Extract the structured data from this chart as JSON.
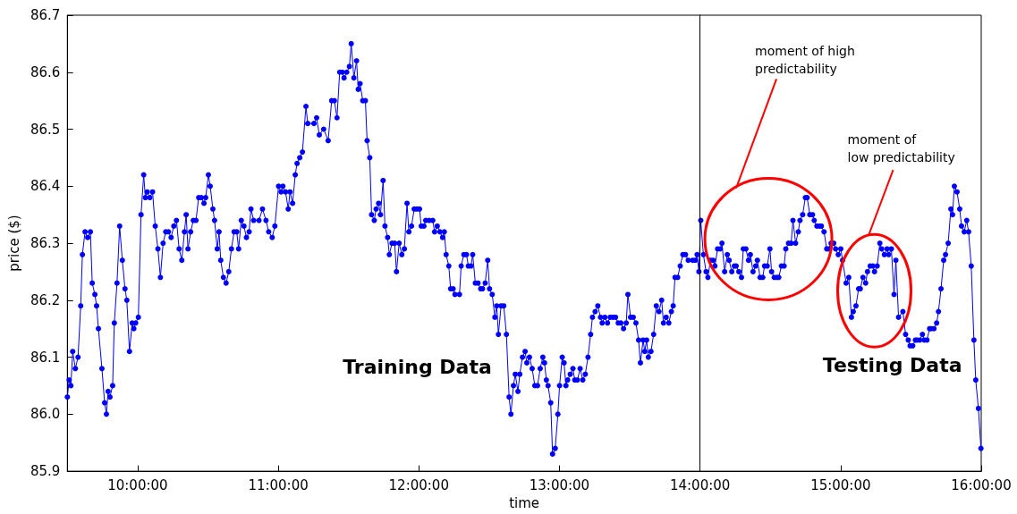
{
  "chart_data": {
    "type": "line",
    "xlabel": "time",
    "ylabel": "price ($)",
    "xlim": [
      9.5,
      16
    ],
    "xticks": [
      {
        "value": 10,
        "label": "10:00:00"
      },
      {
        "value": 11,
        "label": "11:00:00"
      },
      {
        "value": 12,
        "label": "12:00:00"
      },
      {
        "value": 13,
        "label": "13:00:00"
      },
      {
        "value": 14,
        "label": "14:00:00"
      },
      {
        "value": 15,
        "label": "15:00:00"
      },
      {
        "value": 16,
        "label": "16:00:00"
      }
    ],
    "ylim": [
      85.9,
      86.7
    ],
    "yticks": [
      85.9,
      {
        "value": 86,
        "label": "86.0"
      },
      86.1,
      86.2,
      86.3,
      86.4,
      86.5,
      86.6,
      86.7
    ],
    "grid": false,
    "marker": "circle",
    "line_style": "solid",
    "ref_lines": [
      {
        "axis": "x",
        "value": 14,
        "color": "#000000"
      }
    ],
    "annotations": [
      "Training Data",
      "Testing Data",
      "moment of high\npredictability",
      "moment of\nlow predictability"
    ],
    "series": [
      {
        "color": "#0000ff",
        "x": [
          9.5,
          9.513,
          9.525,
          9.538,
          9.557,
          9.576,
          9.595,
          9.607,
          9.626,
          9.645,
          9.664,
          9.677,
          9.696,
          9.708,
          9.721,
          9.746,
          9.765,
          9.778,
          9.79,
          9.803,
          9.822,
          9.834,
          9.853,
          9.872,
          9.891,
          9.91,
          9.923,
          9.942,
          9.961,
          9.973,
          9.986,
          10.005,
          10.024,
          10.043,
          10.055,
          10.068,
          10.087,
          10.106,
          10.125,
          10.144,
          10.162,
          10.181,
          10.2,
          10.219,
          10.238,
          10.257,
          10.276,
          10.295,
          10.314,
          10.333,
          10.345,
          10.358,
          10.377,
          10.396,
          10.415,
          10.434,
          10.453,
          10.472,
          10.484,
          10.503,
          10.516,
          10.535,
          10.547,
          10.566,
          10.579,
          10.591,
          10.61,
          10.629,
          10.648,
          10.667,
          10.686,
          10.705,
          10.718,
          10.737,
          10.756,
          10.774,
          10.793,
          10.806,
          10.825,
          10.863,
          10.888,
          10.913,
          10.932,
          10.957,
          10.976,
          11.002,
          11.02,
          11.033,
          11.052,
          11.071,
          11.084,
          11.102,
          11.121,
          11.134,
          11.153,
          11.172,
          11.197,
          11.21,
          11.254,
          11.273,
          11.292,
          11.323,
          11.355,
          11.38,
          11.399,
          11.418,
          11.437,
          11.456,
          11.468,
          11.487,
          11.506,
          11.519,
          11.538,
          11.557,
          11.569,
          11.582,
          11.601,
          11.62,
          11.632,
          11.651,
          11.664,
          11.683,
          11.696,
          11.714,
          11.727,
          11.746,
          11.759,
          11.778,
          11.79,
          11.809,
          11.828,
          11.841,
          11.86,
          11.879,
          11.897,
          11.916,
          11.929,
          11.948,
          11.967,
          11.986,
          12.005,
          12.017,
          12.036,
          12.049,
          12.074,
          12.099,
          12.112,
          12.131,
          12.15,
          12.169,
          12.181,
          12.194,
          12.213,
          12.226,
          12.244,
          12.257,
          12.289,
          12.301,
          12.32,
          12.339,
          12.352,
          12.371,
          12.383,
          12.402,
          12.421,
          12.44,
          12.453,
          12.472,
          12.49,
          12.503,
          12.522,
          12.541,
          12.554,
          12.566,
          12.585,
          12.604,
          12.623,
          12.642,
          12.655,
          12.673,
          12.686,
          12.705,
          12.718,
          12.737,
          12.756,
          12.768,
          12.787,
          12.806,
          12.825,
          12.844,
          12.863,
          12.882,
          12.894,
          12.907,
          12.919,
          12.938,
          12.951,
          12.97,
          12.989,
          13.001,
          13.02,
          13.033,
          13.046,
          13.058,
          13.077,
          13.096,
          13.109,
          13.128,
          13.147,
          13.166,
          13.184,
          13.203,
          13.222,
          13.235,
          13.254,
          13.273,
          13.292,
          13.304,
          13.323,
          13.342,
          13.361,
          13.38,
          13.399,
          13.418,
          13.437,
          13.456,
          13.475,
          13.487,
          13.506,
          13.525,
          13.544,
          13.563,
          13.576,
          13.595,
          13.607,
          13.62,
          13.632,
          13.651,
          13.67,
          13.689,
          13.708,
          13.727,
          13.74,
          13.759,
          13.778,
          13.796,
          13.809,
          13.822,
          13.841,
          13.859,
          13.878,
          13.897,
          13.916,
          13.948,
          13.967,
          13.979,
          13.992,
          14.005,
          14.024,
          14.043,
          14.056,
          14.074,
          14.093,
          14.106,
          14.125,
          14.144,
          14.156,
          14.175,
          14.194,
          14.207,
          14.226,
          14.244,
          14.257,
          14.276,
          14.295,
          14.308,
          14.326,
          14.345,
          14.358,
          14.377,
          14.396,
          14.408,
          14.427,
          14.446,
          14.459,
          14.478,
          14.497,
          14.509,
          14.528,
          14.547,
          14.56,
          14.579,
          14.598,
          14.61,
          14.629,
          14.648,
          14.661,
          14.68,
          14.699,
          14.711,
          14.73,
          14.749,
          14.762,
          14.781,
          14.8,
          14.812,
          14.831,
          14.85,
          14.863,
          14.882,
          14.901,
          14.913,
          14.932,
          14.951,
          14.964,
          14.983,
          15.001,
          15.014,
          15.039,
          15.058,
          15.077,
          15.09,
          15.109,
          15.128,
          15.14,
          15.159,
          15.178,
          15.191,
          15.21,
          15.229,
          15.241,
          15.26,
          15.279,
          15.292,
          15.311,
          15.33,
          15.342,
          15.361,
          15.38,
          15.393,
          15.412,
          15.443,
          15.462,
          15.481,
          15.494,
          15.513,
          15.532,
          15.544,
          15.563,
          15.582,
          15.595,
          15.614,
          15.633,
          15.645,
          15.664,
          15.683,
          15.696,
          15.714,
          15.733,
          15.746,
          15.765,
          15.784,
          15.796,
          15.809,
          15.828,
          15.847,
          15.86,
          15.879,
          15.897,
          15.91,
          15.929,
          15.948,
          15.961,
          15.98,
          15.998
        ],
        "values": [
          86.03,
          86.06,
          86.05,
          86.11,
          86.08,
          86.1,
          86.19,
          86.28,
          86.32,
          86.31,
          86.32,
          86.23,
          86.21,
          86.19,
          86.15,
          86.08,
          86.02,
          86.0,
          86.04,
          86.03,
          86.05,
          86.16,
          86.23,
          86.33,
          86.27,
          86.22,
          86.2,
          86.11,
          86.16,
          86.15,
          86.16,
          86.17,
          86.35,
          86.42,
          86.38,
          86.39,
          86.38,
          86.39,
          86.33,
          86.29,
          86.24,
          86.3,
          86.32,
          86.32,
          86.31,
          86.33,
          86.34,
          86.29,
          86.27,
          86.32,
          86.35,
          86.29,
          86.32,
          86.34,
          86.34,
          86.38,
          86.38,
          86.37,
          86.38,
          86.42,
          86.4,
          86.36,
          86.34,
          86.29,
          86.32,
          86.27,
          86.24,
          86.23,
          86.25,
          86.29,
          86.32,
          86.32,
          86.29,
          86.34,
          86.33,
          86.31,
          86.32,
          86.36,
          86.34,
          86.34,
          86.36,
          86.34,
          86.32,
          86.31,
          86.33,
          86.4,
          86.39,
          86.4,
          86.39,
          86.36,
          86.39,
          86.37,
          86.42,
          86.44,
          86.45,
          86.46,
          86.54,
          86.51,
          86.51,
          86.52,
          86.49,
          86.5,
          86.48,
          86.55,
          86.55,
          86.52,
          86.6,
          86.6,
          86.59,
          86.6,
          86.61,
          86.65,
          86.59,
          86.62,
          86.57,
          86.58,
          86.55,
          86.55,
          86.48,
          86.45,
          86.35,
          86.34,
          86.36,
          86.37,
          86.35,
          86.41,
          86.33,
          86.31,
          86.28,
          86.3,
          86.3,
          86.25,
          86.3,
          86.28,
          86.29,
          86.37,
          86.32,
          86.33,
          86.36,
          86.36,
          86.36,
          86.33,
          86.33,
          86.34,
          86.34,
          86.34,
          86.32,
          86.33,
          86.32,
          86.31,
          86.32,
          86.28,
          86.26,
          86.22,
          86.22,
          86.21,
          86.21,
          86.26,
          86.28,
          86.28,
          86.26,
          86.26,
          86.28,
          86.23,
          86.23,
          86.22,
          86.22,
          86.23,
          86.27,
          86.22,
          86.21,
          86.17,
          86.19,
          86.14,
          86.19,
          86.19,
          86.14,
          86.03,
          86.0,
          86.05,
          86.07,
          86.04,
          86.07,
          86.1,
          86.11,
          86.09,
          86.1,
          86.08,
          86.05,
          86.05,
          86.08,
          86.1,
          86.09,
          86.06,
          86.05,
          86.02,
          85.93,
          85.94,
          86.0,
          86.05,
          86.1,
          86.09,
          86.05,
          86.06,
          86.07,
          86.08,
          86.06,
          86.06,
          86.08,
          86.06,
          86.07,
          86.1,
          86.14,
          86.17,
          86.18,
          86.19,
          86.17,
          86.16,
          86.17,
          86.16,
          86.17,
          86.17,
          86.17,
          86.16,
          86.16,
          86.15,
          86.16,
          86.21,
          86.17,
          86.17,
          86.16,
          86.13,
          86.09,
          86.13,
          86.11,
          86.13,
          86.1,
          86.11,
          86.14,
          86.19,
          86.18,
          86.2,
          86.16,
          86.17,
          86.16,
          86.18,
          86.19,
          86.24,
          86.24,
          86.26,
          86.28,
          86.28,
          86.27,
          86.27,
          86.27,
          86.28,
          86.25,
          86.34,
          86.28,
          86.25,
          86.24,
          86.27,
          86.27,
          86.26,
          86.29,
          86.29,
          86.3,
          86.25,
          86.28,
          86.27,
          86.25,
          86.26,
          86.26,
          86.25,
          86.24,
          86.29,
          86.29,
          86.27,
          86.28,
          86.25,
          86.26,
          86.27,
          86.24,
          86.24,
          86.26,
          86.26,
          86.29,
          86.25,
          86.24,
          86.24,
          86.24,
          86.26,
          86.26,
          86.29,
          86.3,
          86.3,
          86.34,
          86.3,
          86.32,
          86.34,
          86.35,
          86.38,
          86.38,
          86.35,
          86.35,
          86.34,
          86.33,
          86.33,
          86.33,
          86.32,
          86.29,
          86.29,
          86.3,
          86.3,
          86.29,
          86.28,
          86.29,
          86.27,
          86.23,
          86.24,
          86.17,
          86.18,
          86.19,
          86.22,
          86.22,
          86.24,
          86.23,
          86.25,
          86.26,
          86.26,
          86.25,
          86.26,
          86.3,
          86.29,
          86.28,
          86.29,
          86.28,
          86.29,
          86.21,
          86.27,
          86.17,
          86.18,
          86.14,
          86.13,
          86.12,
          86.12,
          86.13,
          86.13,
          86.13,
          86.14,
          86.13,
          86.13,
          86.15,
          86.15,
          86.15,
          86.16,
          86.18,
          86.22,
          86.27,
          86.28,
          86.3,
          86.36,
          86.35,
          86.4,
          86.39,
          86.36,
          86.33,
          86.32,
          86.34,
          86.32,
          86.26,
          86.13,
          86.06,
          86.01,
          85.94
        ]
      }
    ]
  }
}
